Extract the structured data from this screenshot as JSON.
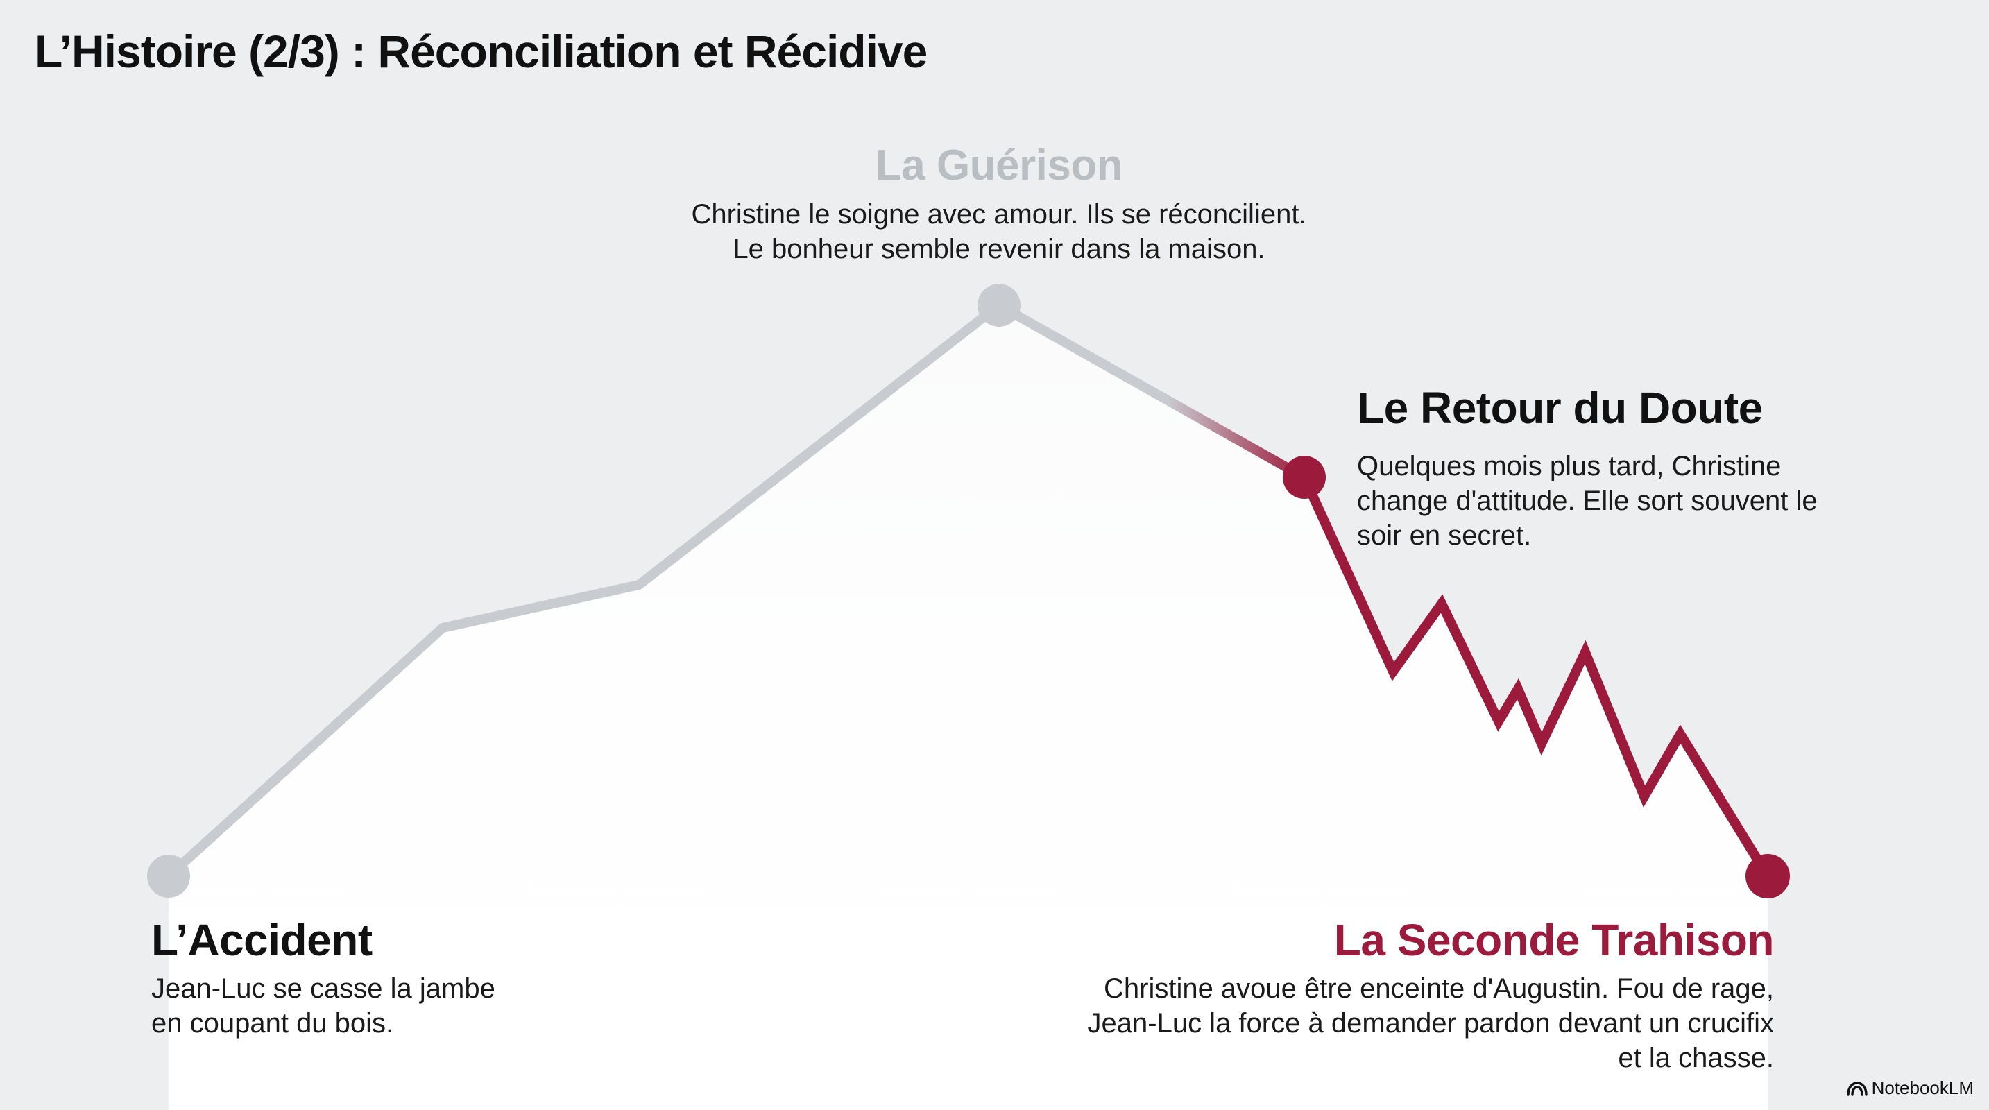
{
  "title": "L’Histoire (2/3) : Réconciliation et Récidive",
  "events": [
    {
      "id": "accident",
      "label": "L’Accident",
      "lines": [
        "Jean-Luc se casse la jambe",
        "en coupant du bois."
      ]
    },
    {
      "id": "guerison",
      "label": "La Guérison",
      "lines": [
        "Christine le soigne avec amour. Ils se réconcilient.",
        "Le bonheur semble revenir dans la maison."
      ]
    },
    {
      "id": "doute",
      "label": "Le Retour du Doute",
      "lines": [
        "Quelques mois plus tard, Christine",
        "change d'attitude. Elle sort souvent le",
        "soir en secret."
      ]
    },
    {
      "id": "trahison",
      "label": "La Seconde Trahison",
      "lines": [
        "Christine avoue être enceinte d'Augustin. Fou de rage,",
        "Jean-Luc la force à demander pardon devant un crucifix",
        "et la chasse."
      ]
    }
  ],
  "colors": {
    "muted": "#c8ccd0",
    "accent": "#9c1b3d",
    "background": "#eceeef",
    "area": "#ffffff"
  },
  "branding": {
    "text": "NotebookLM",
    "icon": "notebooklm-logo-icon"
  }
}
